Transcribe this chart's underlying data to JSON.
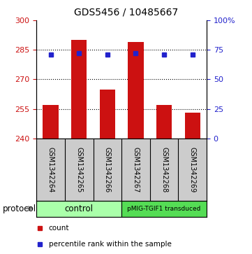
{
  "title": "GDS5456 / 10485667",
  "samples": [
    "GSM1342264",
    "GSM1342265",
    "GSM1342266",
    "GSM1342267",
    "GSM1342268",
    "GSM1342269"
  ],
  "counts": [
    257,
    290,
    265,
    289,
    257,
    253
  ],
  "percentile_ranks": [
    71,
    72,
    71,
    72,
    71,
    71
  ],
  "ymin": 240,
  "ymax": 300,
  "yticks_left": [
    240,
    255,
    270,
    285,
    300
  ],
  "yticks_right": [
    0,
    25,
    50,
    75,
    100
  ],
  "yticks_right_labels": [
    "0",
    "25",
    "50",
    "75",
    "100%"
  ],
  "bar_color": "#cc1111",
  "dot_color": "#2222cc",
  "groups": [
    {
      "label": "control",
      "color": "#aaffaa"
    },
    {
      "label": "pMIG-TGIF1 transduced",
      "color": "#55dd55"
    }
  ],
  "protocol_label": "protocol",
  "legend_count_label": "count",
  "legend_percentile_label": "percentile rank within the sample",
  "title_fontsize": 10,
  "tick_fontsize": 8,
  "sample_fontsize": 7,
  "legend_fontsize": 7.5,
  "proto_fontsize": 8.5
}
